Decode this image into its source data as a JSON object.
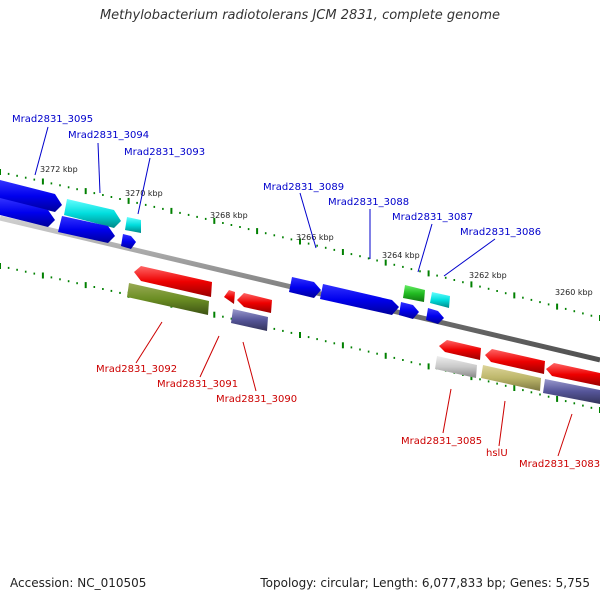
{
  "title": "Methylobacterium radiotolerans JCM 2831, complete genome",
  "footer": {
    "accession": "Accession: NC_010505",
    "summary": "Topology: circular; Length: 6,077,833 bp; Genes: 5,755"
  },
  "colors": {
    "forward_label": "#0000cc",
    "reverse_label": "#cc0000",
    "backbone": "#808080",
    "tick": "#008000"
  },
  "scale": {
    "unit": "kbp",
    "labels": [
      "3272 kbp",
      "3270 kbp",
      "3268 kbp",
      "3266 kbp",
      "3264 kbp",
      "3262 kbp",
      "3260 kbp"
    ]
  },
  "genes": {
    "forward": [
      {
        "name": "Mrad2831_3095"
      },
      {
        "name": "Mrad2831_3094"
      },
      {
        "name": "Mrad2831_3093"
      },
      {
        "name": "Mrad2831_3089"
      },
      {
        "name": "Mrad2831_3088"
      },
      {
        "name": "Mrad2831_3087"
      },
      {
        "name": "Mrad2831_3086"
      }
    ],
    "reverse": [
      {
        "name": "Mrad2831_3092"
      },
      {
        "name": "Mrad2831_3091"
      },
      {
        "name": "Mrad2831_3090"
      },
      {
        "name": "Mrad2831_3085"
      },
      {
        "name": "hslU"
      },
      {
        "name": "Mrad2831_3083"
      }
    ]
  }
}
